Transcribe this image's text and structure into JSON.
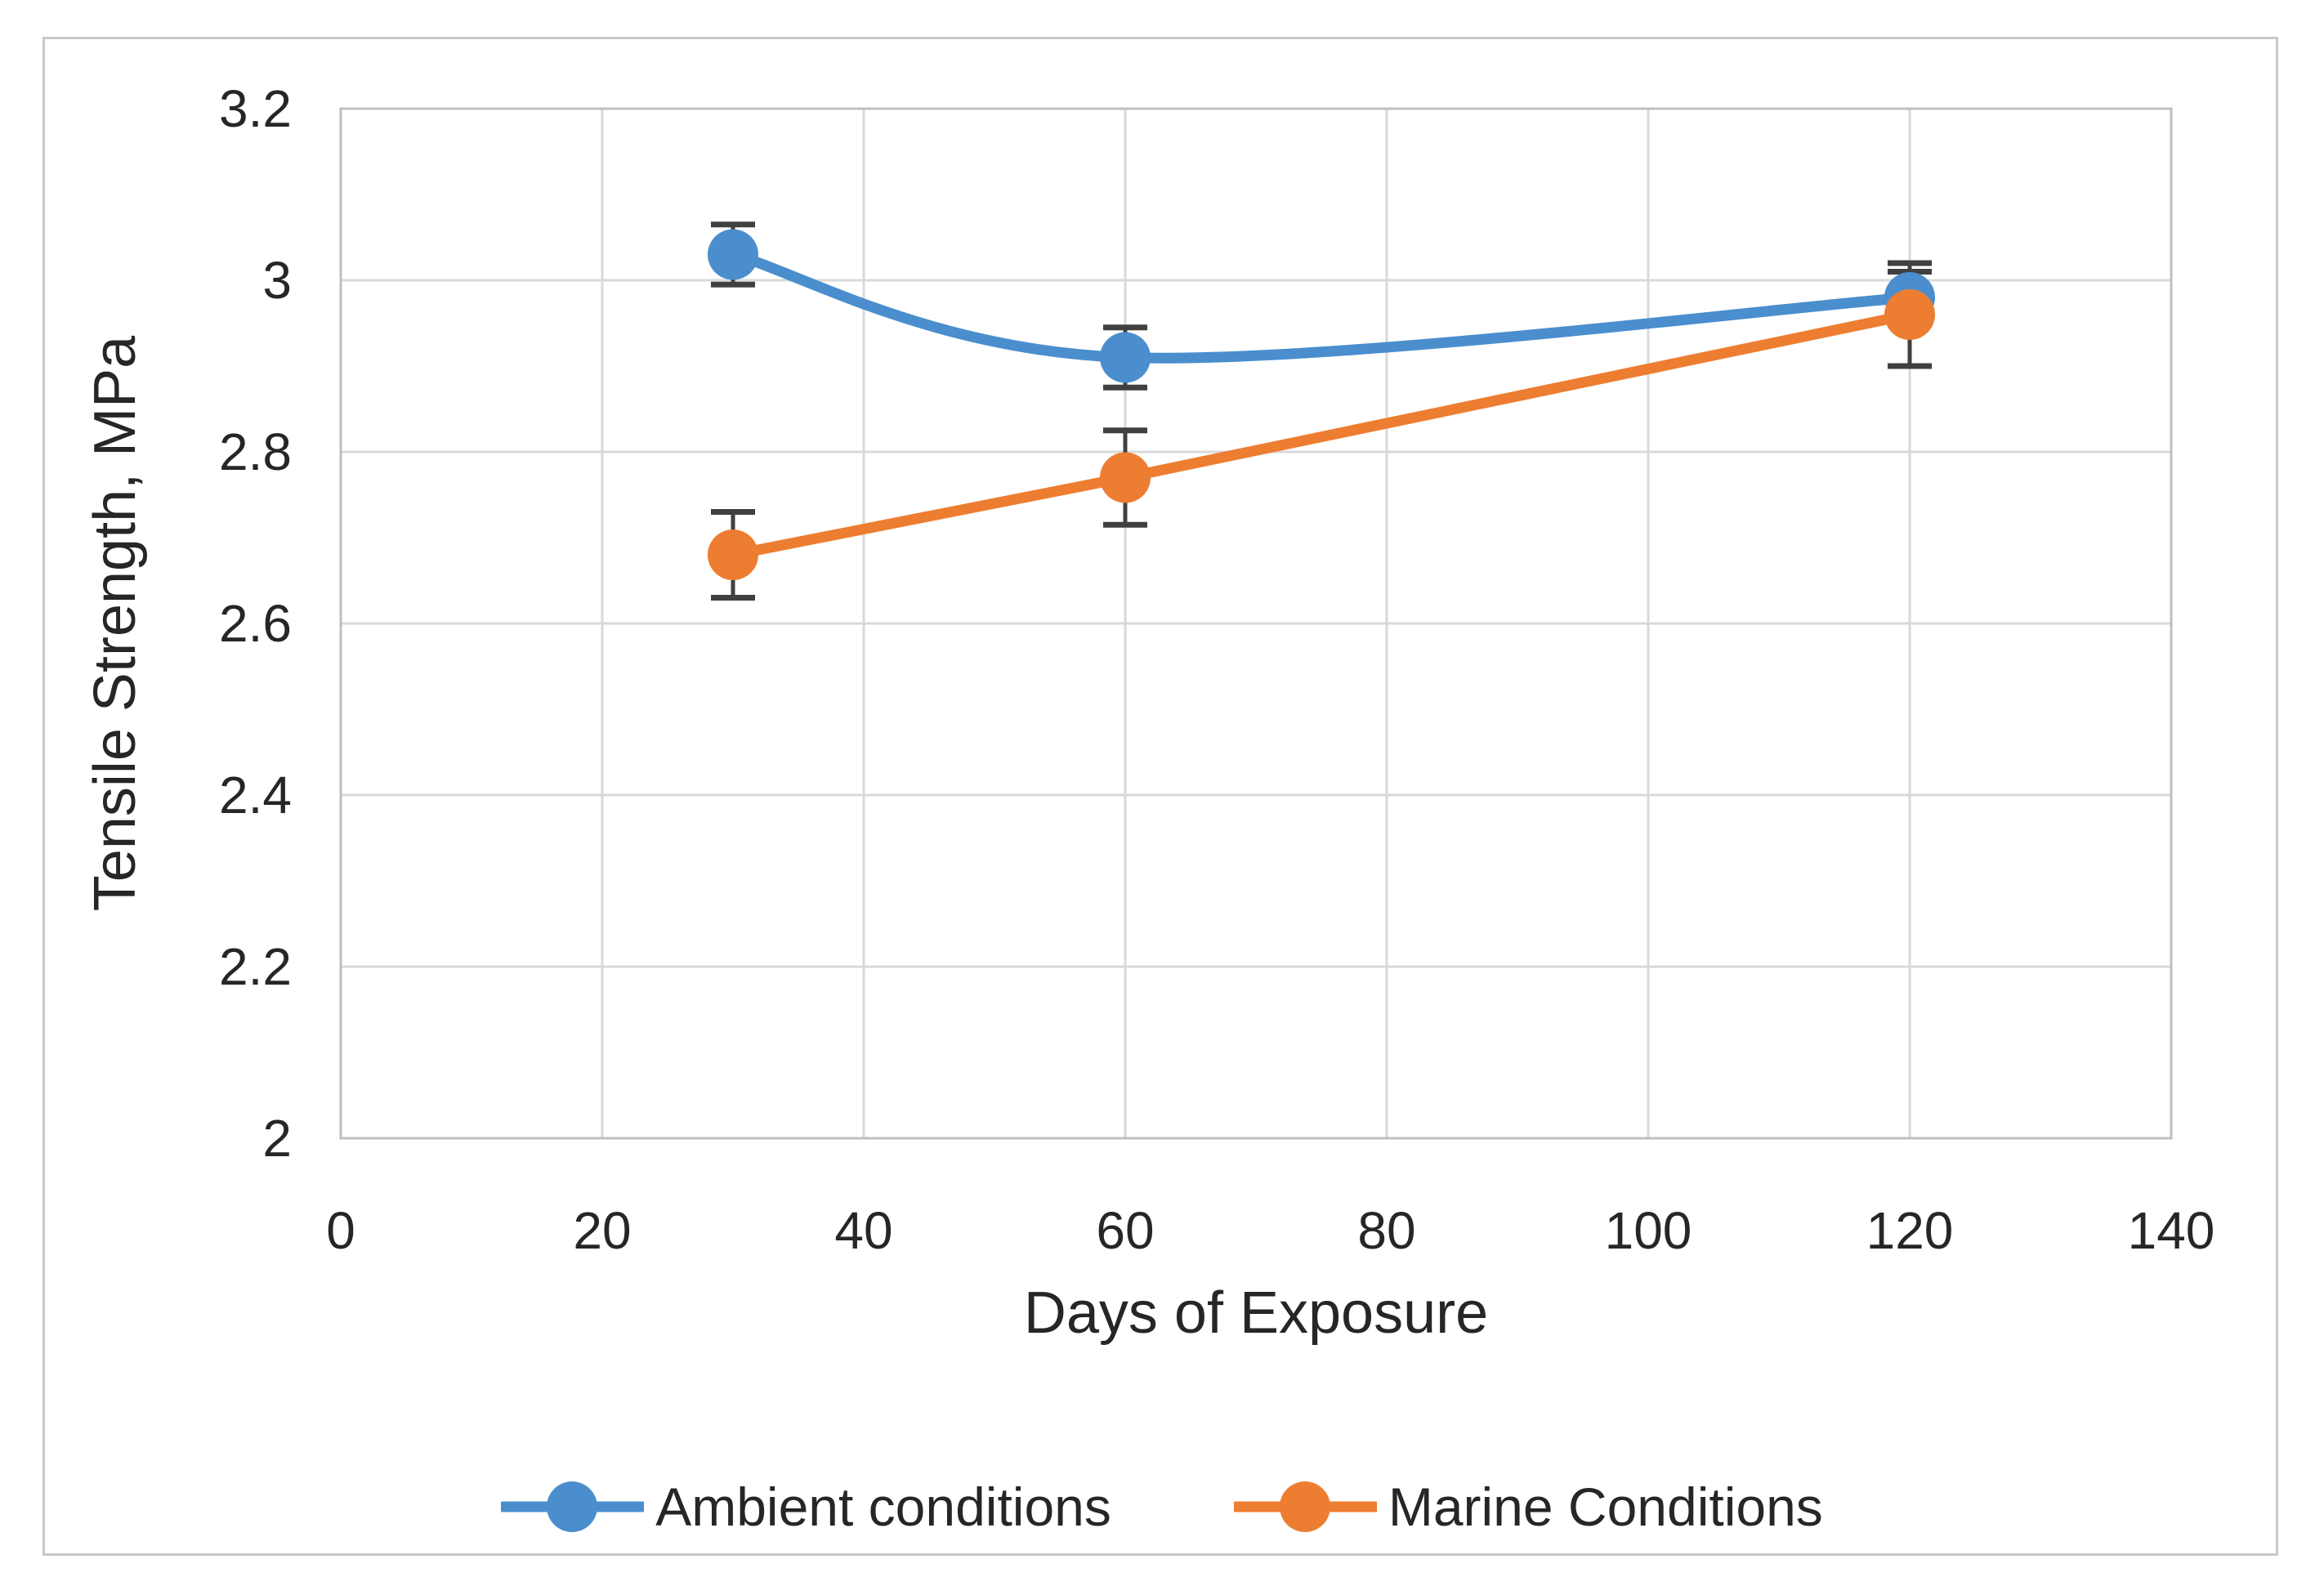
{
  "chart_data": {
    "type": "line",
    "title": "",
    "xlabel": "Days of Exposure",
    "ylabel": "Tensile Strength, MPa",
    "x": [
      30,
      60,
      120
    ],
    "series": [
      {
        "name": "Ambient conditions",
        "values": [
          3.03,
          2.91,
          2.98
        ],
        "error_bars": [
          0.035,
          0.035,
          0.03
        ],
        "color": "#4A8ECD",
        "smooth": true
      },
      {
        "name": "Marine Conditions",
        "values": [
          2.68,
          2.77,
          2.96
        ],
        "error_bars": [
          0.05,
          0.055,
          0.06
        ],
        "color": "#ED7D31",
        "smooth": false
      }
    ],
    "xlim": [
      0,
      140
    ],
    "xtick_step": 20,
    "xtick_labels": [
      "0",
      "20",
      "40",
      "60",
      "80",
      "100",
      "120",
      "140"
    ],
    "ylim": [
      2,
      3.2
    ],
    "ytick_step": 0.2,
    "ytick_labels": [
      "2",
      "2.2",
      "2.4",
      "2.6",
      "2.8",
      "3",
      "3.2"
    ],
    "grid": true,
    "legend_position": "bottom",
    "colors": {
      "grid": "#D9D9D9",
      "axis_border": "#BFBFBF",
      "error_bar": "#404040",
      "text": "#262626",
      "frame_border": "#C8C8C8",
      "background": "#FFFFFF"
    }
  }
}
